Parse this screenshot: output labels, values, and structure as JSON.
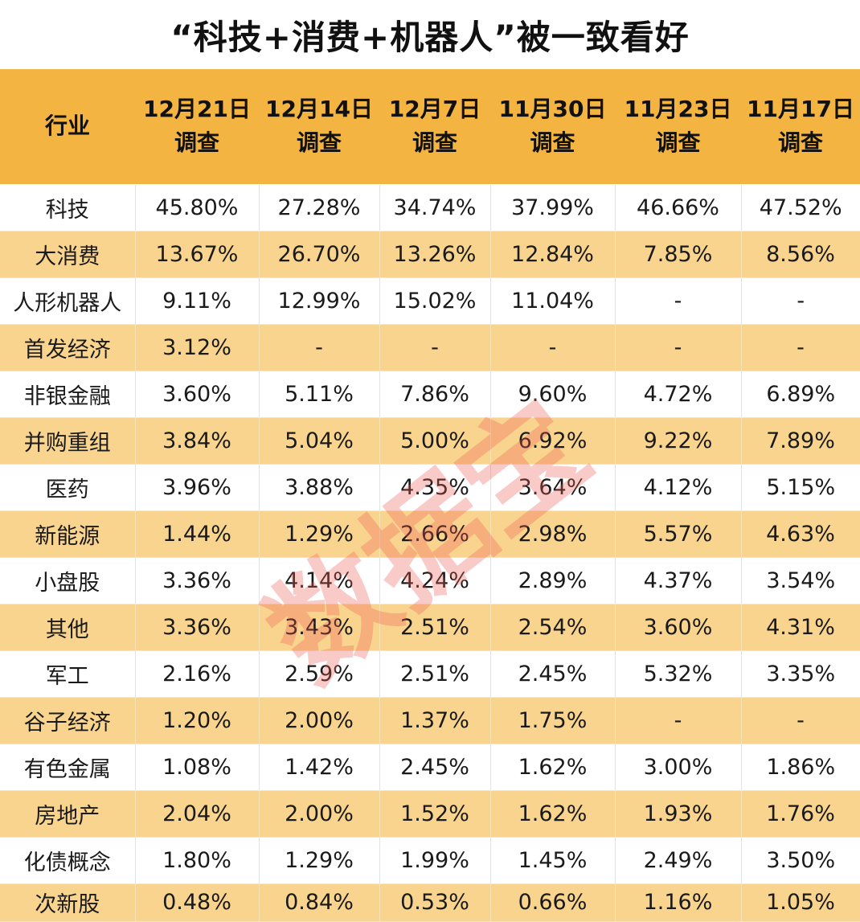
{
  "title": "“科技+消费+机器人”被一致看好",
  "watermark": "数据宝",
  "colors": {
    "header_bg": "#f3b442",
    "band_bg": "#f9d48f",
    "watermark": "#ec5c54"
  },
  "table": {
    "header": {
      "industry": "行业",
      "dates": [
        {
          "date": "12月21日",
          "sub": "调查"
        },
        {
          "date": "12月14日",
          "sub": "调查"
        },
        {
          "date": "12月7日",
          "sub": "调查"
        },
        {
          "date": "11月30日",
          "sub": "调查"
        },
        {
          "date": "11月23日",
          "sub": "调查"
        },
        {
          "date": "11月17日",
          "sub": "调查"
        }
      ]
    },
    "rows": [
      {
        "name": "科技",
        "values": [
          "45.80%",
          "27.28%",
          "34.74%",
          "37.99%",
          "46.66%",
          "47.52%"
        ]
      },
      {
        "name": "大消费",
        "values": [
          "13.67%",
          "26.70%",
          "13.26%",
          "12.84%",
          "7.85%",
          "8.56%"
        ]
      },
      {
        "name": "人形机器人",
        "values": [
          "9.11%",
          "12.99%",
          "15.02%",
          "11.04%",
          "-",
          "-"
        ]
      },
      {
        "name": "首发经济",
        "values": [
          "3.12%",
          "-",
          "-",
          "-",
          "-",
          "-"
        ]
      },
      {
        "name": "非银金融",
        "values": [
          "3.60%",
          "5.11%",
          "7.86%",
          "9.60%",
          "4.72%",
          "6.89%"
        ]
      },
      {
        "name": "并购重组",
        "values": [
          "3.84%",
          "5.04%",
          "5.00%",
          "6.92%",
          "9.22%",
          "7.89%"
        ]
      },
      {
        "name": "医药",
        "values": [
          "3.96%",
          "3.88%",
          "4.35%",
          "3.64%",
          "4.12%",
          "5.15%"
        ]
      },
      {
        "name": "新能源",
        "values": [
          "1.44%",
          "1.29%",
          "2.66%",
          "2.98%",
          "5.57%",
          "4.63%"
        ]
      },
      {
        "name": "小盘股",
        "values": [
          "3.36%",
          "4.14%",
          "4.24%",
          "2.89%",
          "4.37%",
          "3.54%"
        ]
      },
      {
        "name": "其他",
        "values": [
          "3.36%",
          "3.43%",
          "2.51%",
          "2.54%",
          "3.60%",
          "4.31%"
        ]
      },
      {
        "name": "军工",
        "values": [
          "2.16%",
          "2.59%",
          "2.51%",
          "2.45%",
          "5.32%",
          "3.35%"
        ]
      },
      {
        "name": "谷子经济",
        "values": [
          "1.20%",
          "2.00%",
          "1.37%",
          "1.75%",
          "-",
          "-"
        ]
      },
      {
        "name": "有色金属",
        "values": [
          "1.08%",
          "1.42%",
          "2.45%",
          "1.62%",
          "3.00%",
          "1.86%"
        ]
      },
      {
        "name": "房地产",
        "values": [
          "2.04%",
          "2.00%",
          "1.52%",
          "1.62%",
          "1.93%",
          "1.76%"
        ]
      },
      {
        "name": "化债概念",
        "values": [
          "1.80%",
          "1.29%",
          "1.99%",
          "1.45%",
          "2.49%",
          "3.50%"
        ]
      },
      {
        "name": "次新股",
        "values": [
          "0.48%",
          "0.84%",
          "0.53%",
          "0.66%",
          "1.16%",
          "1.05%"
        ]
      }
    ]
  }
}
